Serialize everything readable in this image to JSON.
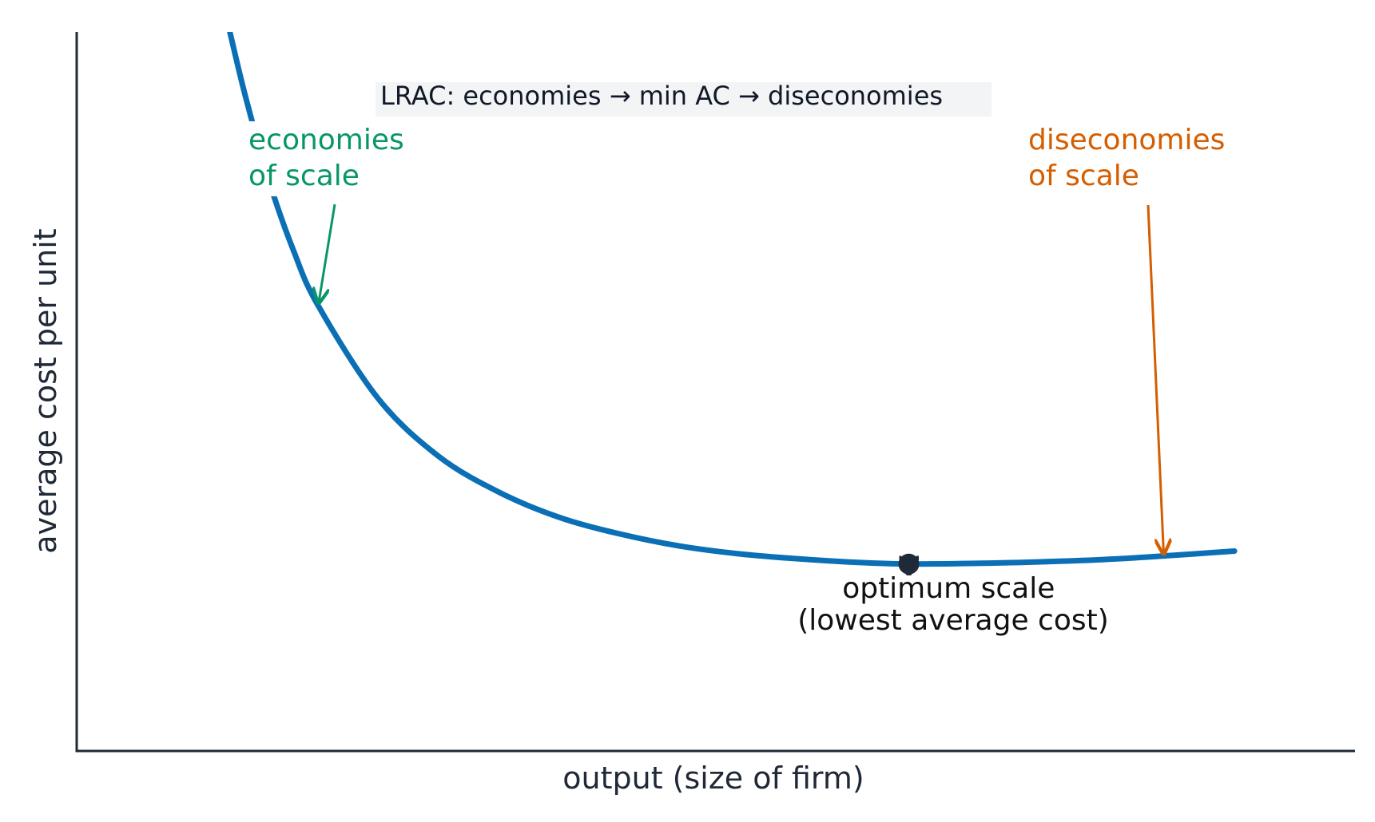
{
  "chart_data": {
    "type": "line",
    "title": "",
    "xlabel": "output (size of firm)",
    "ylabel": "average cost per unit",
    "grid": false,
    "axes_ticks": "none",
    "series": [
      {
        "name": "",
        "points": [
          [
            1.27,
            10.0
          ],
          [
            1.4,
            9.1
          ],
          [
            1.6,
            7.9
          ],
          [
            1.8,
            6.95
          ],
          [
            2.0,
            6.2
          ],
          [
            2.5,
            4.9
          ],
          [
            3.0,
            4.1
          ],
          [
            3.5,
            3.6
          ],
          [
            4.0,
            3.25
          ],
          [
            4.5,
            3.02
          ],
          [
            5.0,
            2.85
          ],
          [
            5.5,
            2.74
          ],
          [
            6.0,
            2.67
          ],
          [
            6.5,
            2.62
          ],
          [
            6.9,
            2.6
          ],
          [
            7.5,
            2.61
          ],
          [
            8.0,
            2.63
          ],
          [
            8.5,
            2.66
          ],
          [
            9.0,
            2.71
          ],
          [
            9.6,
            2.78
          ]
        ]
      }
    ],
    "xlim": [
      0,
      10.6
    ],
    "ylim": [
      0,
      10.0
    ],
    "annotations": {
      "box": {
        "text": "LRAC: economies → min AC → diseconomies"
      },
      "economies": {
        "lines": [
          "economies",
          "of scale"
        ],
        "color": "#079669",
        "arrow_to": [
          2.0,
          6.2
        ]
      },
      "diseconomies": {
        "lines": [
          "diseconomies",
          "of scale"
        ],
        "color": "#d55e00",
        "arrow_to": [
          9.0,
          2.71
        ]
      },
      "optimum": {
        "lines": [
          "optimum scale",
          "(lowest average cost)"
        ],
        "color": "#1f2937",
        "point": [
          6.9,
          2.6
        ]
      }
    },
    "colors": {
      "curve": "#0a6fb5",
      "axis": "#1f2937",
      "box_bg": "#f3f4f6"
    }
  }
}
